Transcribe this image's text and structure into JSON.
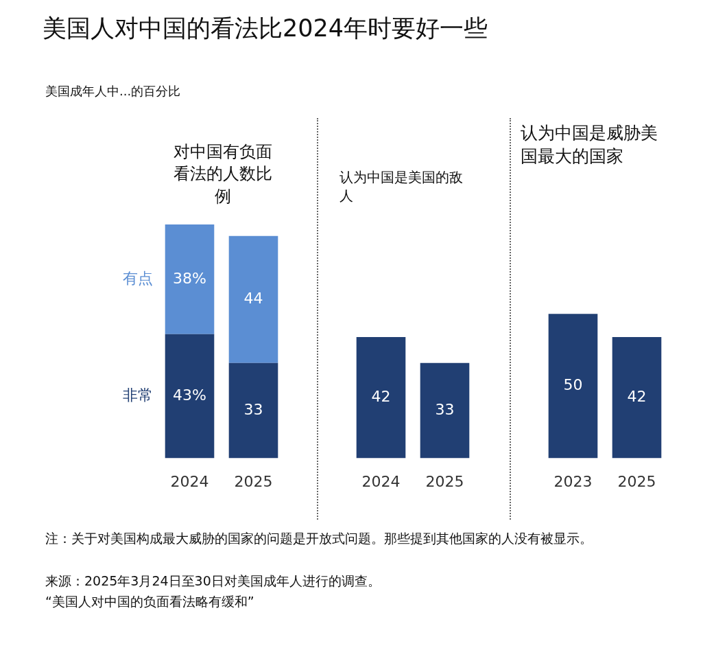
{
  "chart_data": [
    {
      "type": "other",
      "title": "美国人对中国的看法比2024年时要好一些",
      "subtitle": "美国成年人中...的百分比",
      "annotations": [
        "注：关于对美国构成最大威胁的国家的问题是开放式问题。那些提到其他国家的人没有被显示。",
        "来源：2025年3月24日至30日对美国成年人进行的调查。",
        "“美国人对中国的负面看法略有缓和”"
      ]
    },
    {
      "type": "bar",
      "title": "对中国有负面看法的人数比例",
      "categories": [
        "2024",
        "2025"
      ],
      "stacked": true,
      "series": [
        {
          "name": "非常",
          "color": "#213f73",
          "values": [
            43,
            33
          ],
          "value_labels": [
            "43%",
            "33"
          ]
        },
        {
          "name": "有点",
          "color": "#5b8ed3",
          "values": [
            38,
            44
          ],
          "value_labels": [
            "38%",
            "44"
          ]
        }
      ]
    },
    {
      "type": "bar",
      "title": "认为中国是美国的敌人",
      "categories": [
        "2024",
        "2025"
      ],
      "series": [
        {
          "color": "#213f73",
          "values": [
            42,
            33
          ]
        }
      ],
      "data_labels": true
    },
    {
      "type": "bar",
      "title": "认为中国是威胁美国最大的国家",
      "categories": [
        "2023",
        "2025"
      ],
      "series": [
        {
          "color": "#213f73",
          "values": [
            50,
            42
          ]
        }
      ],
      "data_labels": true
    }
  ]
}
